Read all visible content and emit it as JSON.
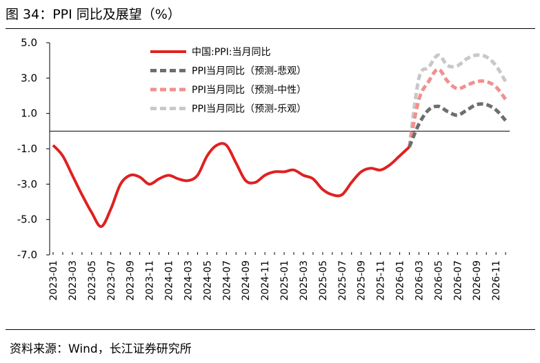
{
  "figure": {
    "title": "图  34：PPI 同比及展望（%）",
    "source": "资料来源：Wind，长江证券研究所"
  },
  "chart_data": {
    "type": "line",
    "title": "PPI 同比及展望（%）",
    "xlabel": "",
    "ylabel": "",
    "ylim": [
      -7.0,
      5.0
    ],
    "yticks": [
      5.0,
      3.0,
      1.0,
      -1.0,
      -3.0,
      -5.0,
      -7.0
    ],
    "ytick_labels": [
      "5.0",
      "3.0",
      "1.0",
      "-1.0",
      "-3.0",
      "-5.0",
      "-7.0"
    ],
    "grid": false,
    "legend_position": "top-center",
    "months": [
      "2023-01",
      "2023-02",
      "2023-03",
      "2023-04",
      "2023-05",
      "2023-06",
      "2023-07",
      "2023-08",
      "2023-09",
      "2023-10",
      "2023-11",
      "2023-12",
      "2024-01",
      "2024-02",
      "2024-03",
      "2024-04",
      "2024-05",
      "2024-06",
      "2024-07",
      "2024-08",
      "2024-09",
      "2024-10",
      "2024-11",
      "2024-12",
      "2025-01",
      "2025-02",
      "2025-03",
      "2025-04",
      "2025-05",
      "2025-06",
      "2025-07",
      "2025-08",
      "2025-09",
      "2025-10",
      "2025-11",
      "2025-12",
      "2026-01",
      "2026-02",
      "2026-03",
      "2026-04",
      "2026-05",
      "2026-06",
      "2026-07",
      "2026-08",
      "2026-09",
      "2026-10",
      "2026-11",
      "2026-12"
    ],
    "tick_labels": [
      "2023-01",
      "2023-03",
      "2023-05",
      "2023-07",
      "2023-09",
      "2023-11",
      "2024-01",
      "2024-03",
      "2024-05",
      "2024-07",
      "2024-09",
      "2024-11",
      "2025-01",
      "2025-03",
      "2025-05",
      "2025-07",
      "2025-09",
      "2025-11",
      "2026-01",
      "2026-03",
      "2026-05",
      "2026-07",
      "2026-09",
      "2026-11"
    ],
    "series": [
      {
        "name": "中国:PPI:当月同比",
        "color": "#e02020",
        "style": "solid",
        "start_index": 0,
        "values": [
          -0.8,
          -1.4,
          -2.5,
          -3.6,
          -4.6,
          -5.4,
          -4.4,
          -3.0,
          -2.5,
          -2.6,
          -3.0,
          -2.7,
          -2.5,
          -2.7,
          -2.8,
          -2.5,
          -1.4,
          -0.8,
          -0.8,
          -1.8,
          -2.8,
          -2.9,
          -2.5,
          -2.3,
          -2.3,
          -2.2,
          -2.5,
          -2.7,
          -3.3,
          -3.6,
          -3.6,
          -2.9,
          -2.3,
          -2.1,
          -2.2,
          -1.9,
          -1.4,
          -0.9
        ]
      },
      {
        "name": "PPI当月同比（预测-悲观）",
        "color": "#6e6e6e",
        "style": "dashed",
        "start_index": 37,
        "values": [
          -0.9,
          0.4,
          1.2,
          1.4,
          1.1,
          0.9,
          1.2,
          1.5,
          1.5,
          1.2,
          0.6
        ]
      },
      {
        "name": "PPI当月同比（预测-中性）",
        "color": "#f28f8f",
        "style": "dashed",
        "start_index": 37,
        "values": [
          -0.9,
          1.8,
          2.8,
          3.5,
          2.8,
          2.4,
          2.6,
          2.8,
          2.8,
          2.5,
          1.8
        ]
      },
      {
        "name": "PPI当月同比（预测-乐观）",
        "color": "#c8c8c8",
        "style": "dashed",
        "start_index": 37,
        "values": [
          -0.9,
          3.0,
          3.6,
          4.3,
          3.7,
          3.7,
          4.1,
          4.3,
          4.2,
          3.7,
          2.8
        ]
      }
    ]
  }
}
